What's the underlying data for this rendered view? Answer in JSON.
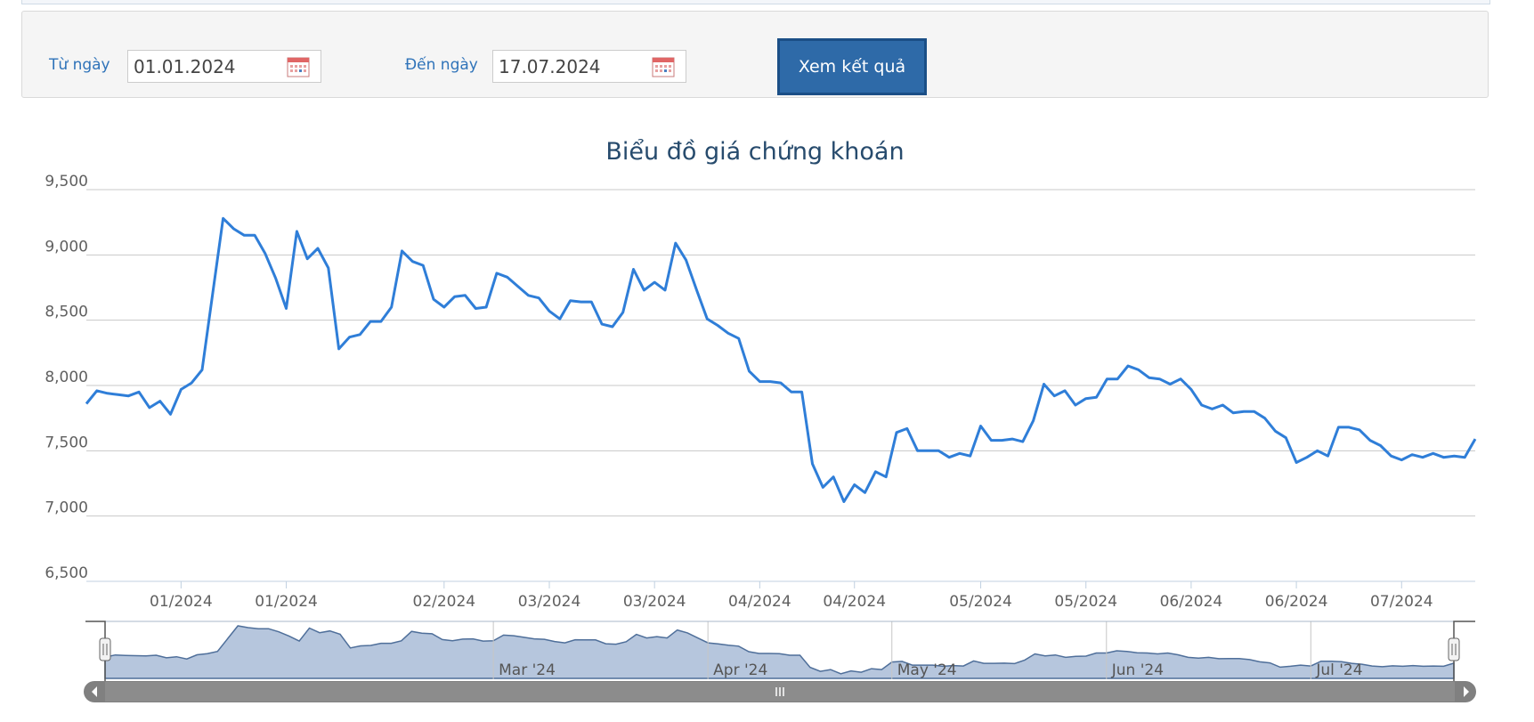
{
  "filter": {
    "from_label": "Từ ngày",
    "from_value": "01.01.2024",
    "to_label": "Đến ngày",
    "to_value": "17.07.2024",
    "submit_label": "Xem kết quả"
  },
  "colors": {
    "line": "#2f7ed8",
    "navigator_fill": "#b6c6dd",
    "navigator_line": "#4f6f9a",
    "grid": "#c8c8c8",
    "title": "#274b6d",
    "accent": "#2f73b9"
  },
  "chart_data": {
    "type": "line",
    "title": "Biểu đồ giá chứng khoán",
    "xlabel": "",
    "ylabel": "",
    "ylim": [
      6500,
      9500
    ],
    "y_ticks": [
      6500,
      7000,
      7500,
      8000,
      8500,
      9000,
      9500
    ],
    "y_tick_labels": [
      "6,500",
      "7,000",
      "7,500",
      "8,000",
      "8,500",
      "9,000",
      "9,500"
    ],
    "grid": true,
    "x_tick_labels": [
      "01/2024",
      "01/2024",
      "02/2024",
      "03/2024",
      "03/2024",
      "04/2024",
      "04/2024",
      "05/2024",
      "05/2024",
      "06/2024",
      "06/2024",
      "07/2024"
    ],
    "x_tick_index": [
      9,
      19,
      34,
      44,
      54,
      64,
      73,
      85,
      95,
      105,
      115,
      125
    ],
    "navigator_labels": [
      "Mar '24",
      "Apr '24",
      "May '24",
      "Jun '24",
      "Jul '24"
    ],
    "navigator_label_index": [
      38,
      59,
      77,
      98,
      118
    ],
    "series": [
      {
        "values": [
          7860,
          7960,
          7940,
          7930,
          7920,
          7950,
          7830,
          7880,
          7780,
          7970,
          8020,
          8120,
          8700,
          9280,
          9200,
          9150,
          9150,
          9010,
          8820,
          8590,
          9180,
          8970,
          9050,
          8900,
          8280,
          8370,
          8390,
          8490,
          8490,
          8600,
          9030,
          8950,
          8920,
          8660,
          8600,
          8680,
          8690,
          8590,
          8600,
          8860,
          8830,
          8760,
          8690,
          8670,
          8570,
          8510,
          8650,
          8640,
          8640,
          8470,
          8450,
          8560,
          8890,
          8730,
          8790,
          8730,
          9090,
          8960,
          8730,
          8510,
          8460,
          8400,
          8360,
          8110,
          8030,
          8030,
          8020,
          7950,
          7950,
          7400,
          7220,
          7300,
          7110,
          7240,
          7180,
          7340,
          7300,
          7640,
          7670,
          7500,
          7500,
          7500,
          7450,
          7480,
          7460,
          7690,
          7580,
          7580,
          7590,
          7570,
          7730,
          8010,
          7920,
          7960,
          7850,
          7900,
          7910,
          8050,
          8050,
          8150,
          8120,
          8060,
          8050,
          8010,
          8050,
          7970,
          7850,
          7820,
          7850,
          7790,
          7800,
          7800,
          7750,
          7650,
          7600,
          7410,
          7450,
          7500,
          7460,
          7680,
          7680,
          7660,
          7580,
          7540,
          7460,
          7430,
          7470,
          7450,
          7480,
          7450,
          7460,
          7450,
          7590
        ]
      }
    ]
  }
}
